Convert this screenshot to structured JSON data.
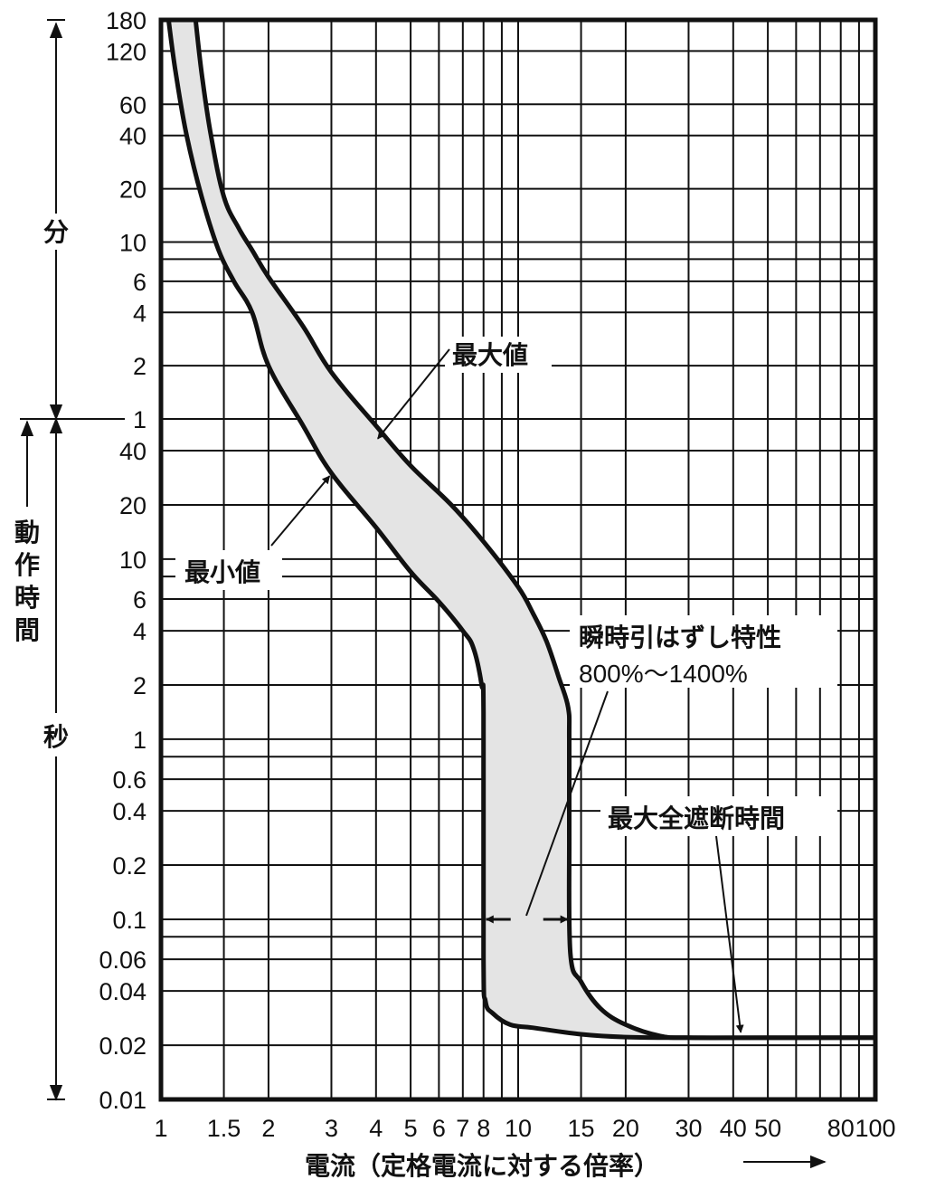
{
  "chart_data": {
    "type": "area",
    "x_scale": "log",
    "y_scale": "log",
    "xlim": [
      1,
      100
    ],
    "ylim_seconds": [
      0.01,
      10800
    ],
    "grid": true,
    "xlabel": "電流（定格電流に対する倍率）",
    "x_ticks": [
      {
        "value": 1,
        "label": "1"
      },
      {
        "value": 1.5,
        "label": "1.5"
      },
      {
        "value": 2,
        "label": "2"
      },
      {
        "value": 3,
        "label": "3"
      },
      {
        "value": 4,
        "label": "4"
      },
      {
        "value": 5,
        "label": "5"
      },
      {
        "value": 6,
        "label": "6"
      },
      {
        "value": 7,
        "label": "7"
      },
      {
        "value": 8,
        "label": "8"
      },
      {
        "value": 10,
        "label": "10"
      },
      {
        "value": 15,
        "label": "15"
      },
      {
        "value": 20,
        "label": "20"
      },
      {
        "value": 30,
        "label": "30"
      },
      {
        "value": 40,
        "label": "40"
      },
      {
        "value": 50,
        "label": "50"
      },
      {
        "value": 80,
        "label": "80"
      },
      {
        "value": 100,
        "label": "100"
      }
    ],
    "y_ticks_minutes": [
      {
        "value": 180,
        "label": "180"
      },
      {
        "value": 120,
        "label": "120"
      },
      {
        "value": 60,
        "label": "60"
      },
      {
        "value": 40,
        "label": "40"
      },
      {
        "value": 20,
        "label": "20"
      },
      {
        "value": 10,
        "label": "10"
      },
      {
        "value": 6,
        "label": "6"
      },
      {
        "value": 4,
        "label": "4"
      },
      {
        "value": 2,
        "label": "2"
      },
      {
        "value": 1,
        "label": "1"
      }
    ],
    "y_ticks_seconds": [
      {
        "value": 40,
        "label": "40"
      },
      {
        "value": 20,
        "label": "20"
      },
      {
        "value": 10,
        "label": "10"
      },
      {
        "value": 6,
        "label": "6"
      },
      {
        "value": 4,
        "label": "4"
      },
      {
        "value": 2,
        "label": "2"
      },
      {
        "value": 1,
        "label": "1"
      },
      {
        "value": 0.6,
        "label": "0.6"
      },
      {
        "value": 0.4,
        "label": "0.4"
      },
      {
        "value": 0.2,
        "label": "0.2"
      },
      {
        "value": 0.1,
        "label": "0.1"
      },
      {
        "value": 0.06,
        "label": "0.06"
      },
      {
        "value": 0.04,
        "label": "0.04"
      },
      {
        "value": 0.02,
        "label": "0.02"
      },
      {
        "value": 0.01,
        "label": "0.01"
      }
    ],
    "y_unit_minutes": "分",
    "y_unit_seconds": "秒",
    "y_title": "動作時間",
    "series": [
      {
        "name": "最大値",
        "x": [
          1.25,
          1.3,
          1.38,
          1.5,
          1.65,
          1.8,
          2.0,
          2.5,
          3.0,
          4.0,
          5.0,
          6.5,
          8.0,
          10.0,
          11.0,
          12.0,
          13.0,
          13.8,
          13.9,
          13.9,
          14.0,
          15.0,
          17.0,
          20.0,
          25.0,
          30.0,
          50.0,
          100.0
        ],
        "y_seconds": [
          10800,
          5400,
          2400,
          1080,
          720,
          540,
          380,
          200,
          110,
          55,
          33,
          20,
          12.5,
          7.0,
          5.0,
          3.5,
          2.2,
          1.5,
          1.0,
          0.3,
          0.065,
          0.045,
          0.032,
          0.026,
          0.0225,
          0.022,
          0.022,
          0.022
        ]
      },
      {
        "name": "最小値",
        "x": [
          1.05,
          1.1,
          1.18,
          1.3,
          1.45,
          1.6,
          1.8,
          2.0,
          2.5,
          3.0,
          4.0,
          5.0,
          6.0,
          7.0,
          7.5,
          7.9,
          8.0,
          8.0,
          8.1,
          8.5,
          9.5,
          11.0,
          15.0,
          20.0,
          30.0,
          100.0
        ],
        "y_seconds": [
          10800,
          5400,
          2400,
          1080,
          540,
          360,
          240,
          120,
          55,
          30,
          15,
          8.5,
          5.8,
          4.0,
          3.2,
          2.0,
          1.4,
          0.06,
          0.035,
          0.03,
          0.026,
          0.025,
          0.023,
          0.0222,
          0.022,
          0.022
        ]
      }
    ],
    "band_fill": "#e4e4e4",
    "annotations": [
      {
        "text": "最大値",
        "target_x": 4.0,
        "target_y_seconds": 50
      },
      {
        "text": "最小値",
        "target_x": 3.0,
        "target_y_seconds": 31
      },
      {
        "text": "瞬時引はずし特性",
        "subtext": "800%～1400%",
        "range_x": [
          8,
          14
        ],
        "at_y_seconds": 0.1
      },
      {
        "text": "最大全遮断時間",
        "target_x": 42,
        "target_y_seconds": 0.022
      }
    ]
  }
}
